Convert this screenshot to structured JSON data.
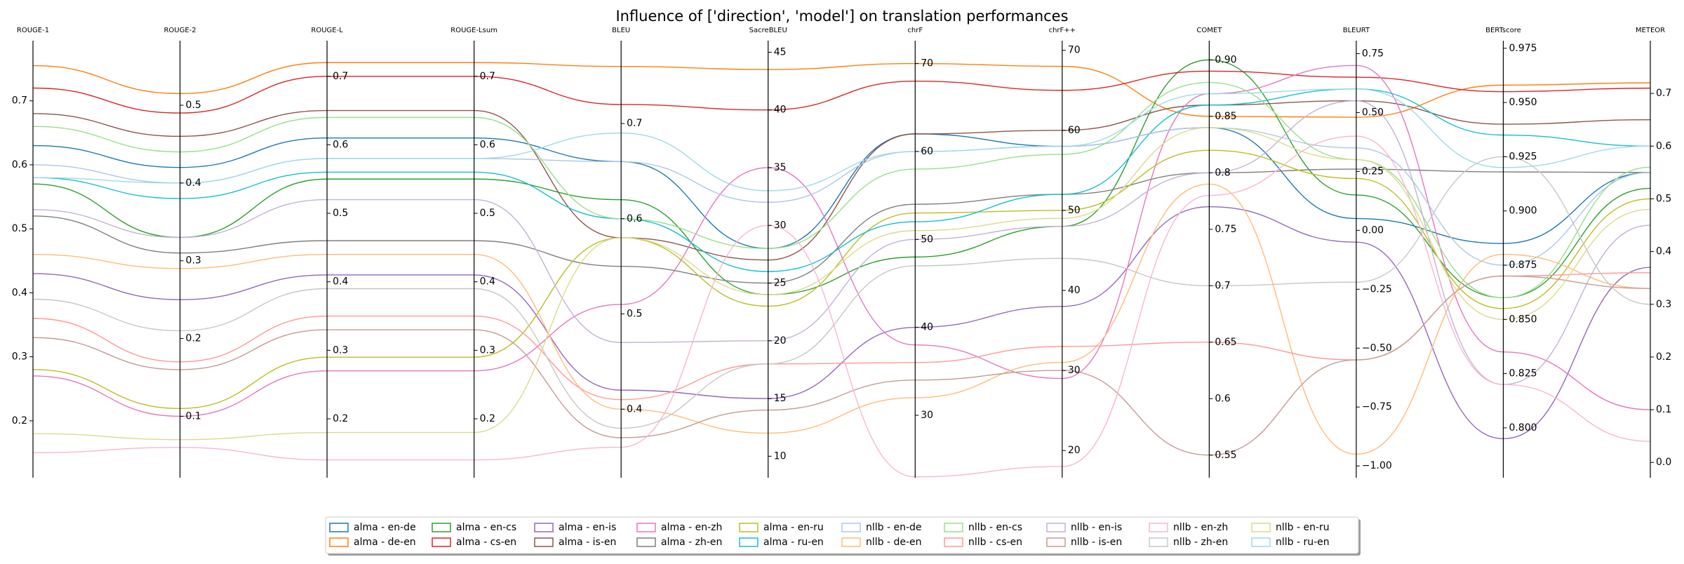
{
  "chart_data": {
    "type": "parallel",
    "title": "Influence of ['direction', 'model'] on translation performances",
    "legend": "lower center",
    "axes": [
      {
        "name": "ROUGE-1",
        "ylim": [
          0.111,
          0.794
        ],
        "yticks": [
          0.2,
          0.3,
          0.4,
          0.5,
          0.6,
          0.7
        ]
      },
      {
        "name": "ROUGE-2",
        "ylim": [
          0.021,
          0.583
        ],
        "yticks": [
          0.1,
          0.2,
          0.3,
          0.4,
          0.5
        ]
      },
      {
        "name": "ROUGE-L",
        "ylim": [
          0.114,
          0.752
        ],
        "yticks": [
          0.2,
          0.3,
          0.4,
          0.5,
          0.6,
          0.7
        ]
      },
      {
        "name": "ROUGE-Lsum",
        "ylim": [
          0.114,
          0.752
        ],
        "yticks": [
          0.2,
          0.3,
          0.4,
          0.5,
          0.6,
          0.7
        ]
      },
      {
        "name": "BLEU",
        "ylim": [
          0.328,
          0.787
        ],
        "yticks": [
          0.4,
          0.5,
          0.6,
          0.7
        ]
      },
      {
        "name": "SacreBLEU",
        "ylim": [
          8.14,
          46.0
        ],
        "yticks": [
          10,
          15,
          20,
          25,
          30,
          35,
          40,
          45
        ]
      },
      {
        "name": "chrF",
        "ylim": [
          22.9,
          72.6
        ],
        "yticks": [
          30,
          40,
          50,
          60,
          70
        ]
      },
      {
        "name": "chrF++",
        "ylim": [
          16.6,
          71.2
        ],
        "yticks": [
          20,
          30,
          40,
          50,
          60,
          70
        ]
      },
      {
        "name": "COMET",
        "ylim": [
          0.53,
          0.917
        ],
        "yticks": [
          0.55,
          0.6,
          0.65,
          0.7,
          0.75,
          0.8,
          0.85,
          {
            "value": 0.9,
            "label": "0.90"
          }
        ]
      },
      {
        "name": "BLEURT",
        "ylim": [
          -1.05,
          0.805
        ],
        "yticks": [
          {
            "value": -1,
            "label": "−1.00"
          },
          {
            "value": -0.75,
            "label": "−0.75"
          },
          {
            "value": -0.5,
            "label": "−0.50"
          },
          {
            "value": -0.25,
            "label": "−0.25"
          },
          {
            "value": 0,
            "label": "0.00"
          },
          0.25,
          {
            "value": 0.5,
            "label": "0.50"
          },
          0.75
        ]
      },
      {
        "name": "BERTscore",
        "ylim": [
          0.777,
          0.9785
        ],
        "yticks": [
          {
            "value": 0.8,
            "label": "0.800"
          },
          0.825,
          {
            "value": 0.85,
            "label": "0.850"
          },
          0.875,
          {
            "value": 0.9,
            "label": "0.900"
          },
          0.925,
          {
            "value": 0.95,
            "label": "0.950"
          },
          0.975
        ]
      },
      {
        "name": "METEOR",
        "ylim": [
          -0.029,
          0.8
        ],
        "yticks": [
          {
            "value": 0,
            "label": "0.0"
          },
          0.1,
          0.2,
          0.3,
          0.4,
          0.5,
          0.6,
          0.7
        ]
      }
    ],
    "series": [
      {
        "name": "alma - en-de",
        "color": "#1f77b4",
        "values": [
          0.63,
          0.42,
          0.61,
          0.61,
          0.66,
          28,
          62,
          58,
          0.84,
          0.05,
          0.885,
          0.55
        ]
      },
      {
        "name": "alma - de-en",
        "color": "#ff7f0e",
        "values": [
          0.755,
          0.515,
          0.72,
          0.72,
          0.76,
          43.5,
          70,
          68,
          0.85,
          0.48,
          0.958,
          0.72
        ]
      },
      {
        "name": "alma - en-cs",
        "color": "#2ca02c",
        "values": [
          0.57,
          0.33,
          0.55,
          0.55,
          0.62,
          24,
          48,
          48,
          0.9,
          0.15,
          0.86,
          0.52
        ]
      },
      {
        "name": "alma - cs-en",
        "color": "#d62728",
        "values": [
          0.72,
          0.49,
          0.7,
          0.7,
          0.72,
          40,
          68,
          65,
          0.89,
          0.65,
          0.955,
          0.71
        ]
      },
      {
        "name": "alma - en-is",
        "color": "#9467bd",
        "values": [
          0.43,
          0.25,
          0.41,
          0.41,
          0.42,
          15,
          40,
          38,
          0.77,
          -0.05,
          0.795,
          0.37
        ]
      },
      {
        "name": "alma - is-en",
        "color": "#8c564b",
        "values": [
          0.68,
          0.46,
          0.65,
          0.65,
          0.58,
          27,
          62,
          60,
          0.86,
          0.55,
          0.94,
          0.65
        ]
      },
      {
        "name": "alma - en-zh",
        "color": "#e377c2",
        "values": [
          0.27,
          0.1,
          0.27,
          0.27,
          0.51,
          35,
          38,
          29,
          0.87,
          0.7,
          0.835,
          0.1
        ]
      },
      {
        "name": "alma - zh-en",
        "color": "#7f7f7f",
        "values": [
          0.52,
          0.31,
          0.46,
          0.46,
          0.55,
          25,
          54,
          52,
          0.8,
          0.26,
          0.918,
          0.55
        ]
      },
      {
        "name": "alma - en-ru",
        "color": "#bcbd22",
        "values": [
          0.28,
          0.11,
          0.29,
          0.29,
          0.58,
          23,
          53,
          50,
          0.82,
          0.22,
          0.855,
          0.5
        ]
      },
      {
        "name": "alma - ru-en",
        "color": "#17becf",
        "values": [
          0.58,
          0.38,
          0.56,
          0.56,
          0.6,
          26,
          52,
          52,
          0.86,
          0.6,
          0.935,
          0.6
        ]
      },
      {
        "name": "nllb - en-de",
        "color": "#aec7e8",
        "values": [
          0.6,
          0.4,
          0.58,
          0.58,
          0.66,
          32,
          60,
          58,
          0.84,
          0.35,
          0.875,
          0.55
        ]
      },
      {
        "name": "nllb - de-en",
        "color": "#ffbb78",
        "values": [
          0.46,
          0.29,
          0.44,
          0.44,
          0.4,
          12,
          32,
          31,
          0.79,
          -0.95,
          0.88,
          0.33
        ]
      },
      {
        "name": "nllb - en-cs",
        "color": "#98df8a",
        "values": [
          0.66,
          0.44,
          0.64,
          0.64,
          0.6,
          28,
          58,
          57,
          0.88,
          0.3,
          0.86,
          0.56
        ]
      },
      {
        "name": "nllb - cs-en",
        "color": "#ff9896",
        "values": [
          0.36,
          0.17,
          0.35,
          0.35,
          0.41,
          18,
          36,
          33,
          0.65,
          -0.55,
          0.87,
          0.36
        ]
      },
      {
        "name": "nllb - en-is",
        "color": "#c5b0d5",
        "values": [
          0.53,
          0.33,
          0.52,
          0.52,
          0.47,
          20,
          50,
          48,
          0.8,
          0.55,
          0.82,
          0.45
        ]
      },
      {
        "name": "nllb - is-en",
        "color": "#c49c94",
        "values": [
          0.33,
          0.16,
          0.33,
          0.33,
          0.37,
          14,
          34,
          30,
          0.55,
          -0.55,
          0.87,
          0.33
        ]
      },
      {
        "name": "nllb - en-zh",
        "color": "#f7b6d2",
        "values": [
          0.15,
          0.06,
          0.14,
          0.14,
          0.36,
          30,
          23,
          18,
          0.78,
          0.4,
          0.82,
          0.04
        ]
      },
      {
        "name": "nllb - zh-en",
        "color": "#c7c7c7",
        "values": [
          0.39,
          0.21,
          0.39,
          0.39,
          0.38,
          18,
          47,
          44,
          0.7,
          -0.22,
          0.925,
          0.3
        ]
      },
      {
        "name": "nllb - en-ru",
        "color": "#dbdb8d",
        "values": [
          0.18,
          0.07,
          0.18,
          0.18,
          0.58,
          24,
          51,
          49,
          0.84,
          0.3,
          0.85,
          0.48
        ]
      },
      {
        "name": "nllb - ru-en",
        "color": "#9edae5",
        "values": [
          0.58,
          0.4,
          0.58,
          0.58,
          0.69,
          33,
          60,
          58,
          0.87,
          0.6,
          0.92,
          0.6
        ]
      }
    ]
  }
}
